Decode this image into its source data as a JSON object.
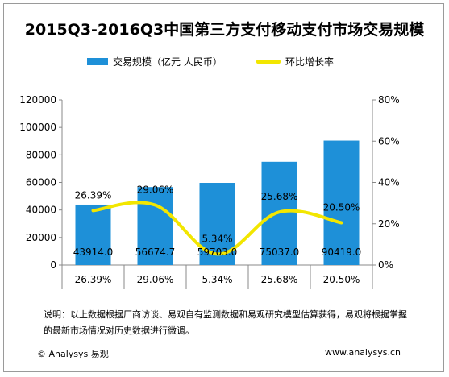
{
  "title": "2015Q3-2016Q3中国第三方支付移动支付市场交易规模",
  "legend": {
    "bar_label": "交易规模（亿元 人民币）",
    "line_label": "环比增长率"
  },
  "colors": {
    "bar": "#1E90D8",
    "line": "#F2E600"
  },
  "chart_data": {
    "type": "bar",
    "title": "2015Q3-2016Q3中国第三方支付移动支付市场交易规模",
    "categories": [
      "26.39%",
      "29.06%",
      "5.34%",
      "25.68%",
      "20.50%"
    ],
    "series": [
      {
        "name": "交易规模（亿元 人民币）",
        "type": "bar",
        "axis": "left",
        "values": [
          43914.0,
          56674.7,
          59703.0,
          75037.0,
          90419.0
        ],
        "labels": [
          "43914.0",
          "56674.7",
          "59703.0",
          "75037.0",
          "90419.0"
        ]
      },
      {
        "name": "环比增长率",
        "type": "line",
        "axis": "right",
        "values": [
          26.39,
          29.06,
          5.34,
          25.68,
          20.5
        ],
        "labels": [
          "26.39%",
          "29.06%",
          "5.34%",
          "25.68%",
          "20.50%"
        ]
      }
    ],
    "y_left": {
      "range": [
        0,
        120000
      ],
      "ticks": [
        "0",
        "20000",
        "40000",
        "60000",
        "80000",
        "100000",
        "120000"
      ]
    },
    "y_right": {
      "range": [
        0,
        80
      ],
      "ticks": [
        "0%",
        "20%",
        "40%",
        "60%",
        "80%"
      ]
    },
    "grid": false,
    "legend_position": "top"
  },
  "note": "说明：以上数据根据厂商访谈、易观自有监测数据和易观研究模型估算获得，易观将根据掌握的最新市场情况对历史数据进行微调。",
  "footer": {
    "copyright": "© Analysys 易观",
    "website": "www.analysys.cn"
  }
}
